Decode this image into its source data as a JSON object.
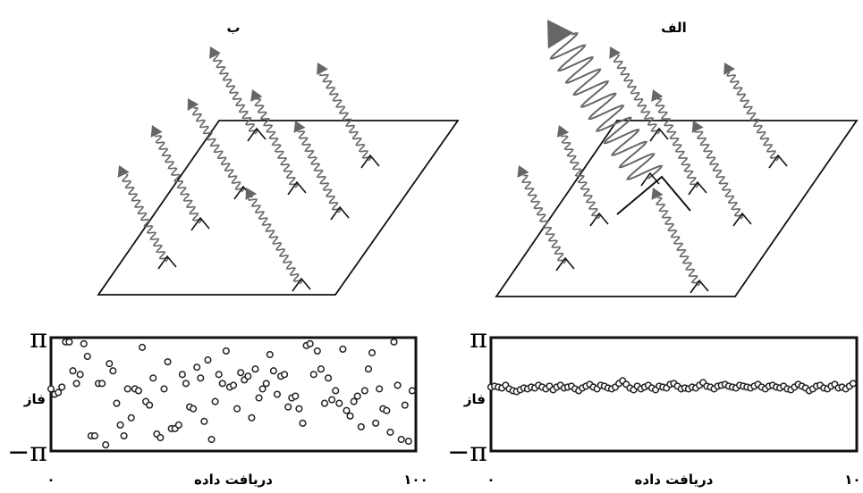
{
  "chart_data": [
    {
      "type": "scatter",
      "title": "ب",
      "xlabel": "دریافت داده",
      "ylabel": "فاز",
      "x": [
        0,
        1,
        2,
        3,
        4,
        5,
        6,
        7,
        8,
        9,
        10,
        11,
        12,
        13,
        14,
        15,
        16,
        17,
        18,
        19,
        20,
        21,
        22,
        23,
        24,
        25,
        26,
        27,
        28,
        29,
        30,
        31,
        32,
        33,
        34,
        35,
        36,
        37,
        38,
        39,
        40,
        41,
        42,
        43,
        44,
        45,
        46,
        47,
        48,
        49,
        50,
        51,
        52,
        53,
        54,
        55,
        56,
        57,
        58,
        59,
        60,
        61,
        62,
        63,
        64,
        65,
        66,
        67,
        68,
        69,
        70,
        71,
        72,
        73,
        74,
        75,
        76,
        77,
        78,
        79,
        80,
        81,
        82,
        83,
        84,
        85,
        86,
        87,
        88,
        89,
        90,
        91,
        92,
        93,
        94,
        95,
        96,
        97,
        98,
        99
      ],
      "values": [
        0.3,
        0.0,
        0.1,
        0.4,
        2.9,
        2.9,
        1.3,
        0.6,
        1.1,
        2.8,
        2.1,
        -2.3,
        -2.3,
        0.6,
        0.6,
        -2.8,
        1.7,
        1.3,
        -0.5,
        -1.7,
        -2.3,
        0.3,
        -1.3,
        0.3,
        0.2,
        2.6,
        -0.4,
        -0.6,
        0.9,
        -2.2,
        -2.4,
        0.3,
        1.8,
        -1.9,
        -1.9,
        -1.7,
        1.1,
        0.6,
        -0.7,
        -0.8,
        1.5,
        0.9,
        -1.5,
        1.9,
        -2.5,
        -0.4,
        1.1,
        0.6,
        2.4,
        0.4,
        0.5,
        -0.8,
        1.2,
        0.8,
        1.0,
        -1.3,
        1.4,
        -0.2,
        0.3,
        0.6,
        2.2,
        1.3,
        0.0,
        1.0,
        1.1,
        -0.7,
        -0.2,
        -0.1,
        -0.8,
        -1.6,
        2.7,
        2.8,
        1.1,
        2.4,
        1.4,
        -0.5,
        0.9,
        -0.3,
        0.2,
        -0.5,
        2.5,
        -0.9,
        -1.2,
        -0.4,
        -0.1,
        -1.8,
        0.2,
        1.4,
        2.3,
        -1.6,
        0.3,
        -0.8,
        -0.9,
        -2.1,
        2.9,
        0.5,
        -2.5,
        -0.6,
        -2.6,
        0.2
      ],
      "xlim": [
        0,
        100
      ],
      "xticks": [
        {
          "value": 0,
          "label": "۰"
        },
        {
          "value": 100,
          "label": "۱۰۰"
        }
      ],
      "ylim": [
        -3.14159,
        3.14159
      ],
      "yticks": [
        {
          "value": -3.14159,
          "label": "−π"
        },
        {
          "value": 3.14159,
          "label": "π"
        }
      ],
      "color": "#222222"
    },
    {
      "type": "scatter",
      "title": "الف",
      "xlabel": "دریافت داده",
      "ylabel": "فاز",
      "x": [
        0,
        1,
        2,
        3,
        4,
        5,
        6,
        7,
        8,
        9,
        10,
        11,
        12,
        13,
        14,
        15,
        16,
        17,
        18,
        19,
        20,
        21,
        22,
        23,
        24,
        25,
        26,
        27,
        28,
        29,
        30,
        31,
        32,
        33,
        34,
        35,
        36,
        37,
        38,
        39,
        40,
        41,
        42,
        43,
        44,
        45,
        46,
        47,
        48,
        49,
        50,
        51,
        52,
        53,
        54,
        55,
        56,
        57,
        58,
        59,
        60,
        61,
        62,
        63,
        64,
        65,
        66,
        67,
        68,
        69,
        70,
        71,
        72,
        73,
        74,
        75,
        76,
        77,
        78,
        79,
        80,
        81,
        82,
        83,
        84,
        85,
        86,
        87,
        88,
        89,
        90,
        91,
        92,
        93,
        94,
        95,
        96,
        97,
        98,
        99
      ],
      "values": [
        0.4,
        0.45,
        0.4,
        0.35,
        0.5,
        0.3,
        0.2,
        0.15,
        0.25,
        0.35,
        0.3,
        0.4,
        0.35,
        0.5,
        0.4,
        0.3,
        0.45,
        0.25,
        0.4,
        0.5,
        0.35,
        0.4,
        0.45,
        0.3,
        0.2,
        0.35,
        0.45,
        0.55,
        0.4,
        0.3,
        0.5,
        0.45,
        0.35,
        0.3,
        0.4,
        0.6,
        0.75,
        0.55,
        0.35,
        0.25,
        0.45,
        0.3,
        0.4,
        0.5,
        0.35,
        0.25,
        0.45,
        0.4,
        0.35,
        0.55,
        0.6,
        0.45,
        0.3,
        0.35,
        0.3,
        0.4,
        0.35,
        0.5,
        0.65,
        0.45,
        0.4,
        0.3,
        0.45,
        0.5,
        0.55,
        0.45,
        0.4,
        0.35,
        0.5,
        0.45,
        0.4,
        0.35,
        0.45,
        0.55,
        0.4,
        0.3,
        0.45,
        0.5,
        0.4,
        0.35,
        0.45,
        0.3,
        0.25,
        0.4,
        0.55,
        0.45,
        0.35,
        0.2,
        0.3,
        0.45,
        0.5,
        0.35,
        0.3,
        0.45,
        0.55,
        0.35,
        0.4,
        0.3,
        0.45,
        0.6
      ],
      "xlim": [
        0,
        100
      ],
      "xticks": [
        {
          "value": 0,
          "label": "۰"
        },
        {
          "value": 100,
          "label": "۱۰۰"
        }
      ],
      "ylim": [
        -3.14159,
        3.14159
      ],
      "yticks": [
        {
          "value": -3.14159,
          "label": "−π"
        },
        {
          "value": 3.14159,
          "label": "π"
        }
      ],
      "color": "#222222"
    }
  ]
}
